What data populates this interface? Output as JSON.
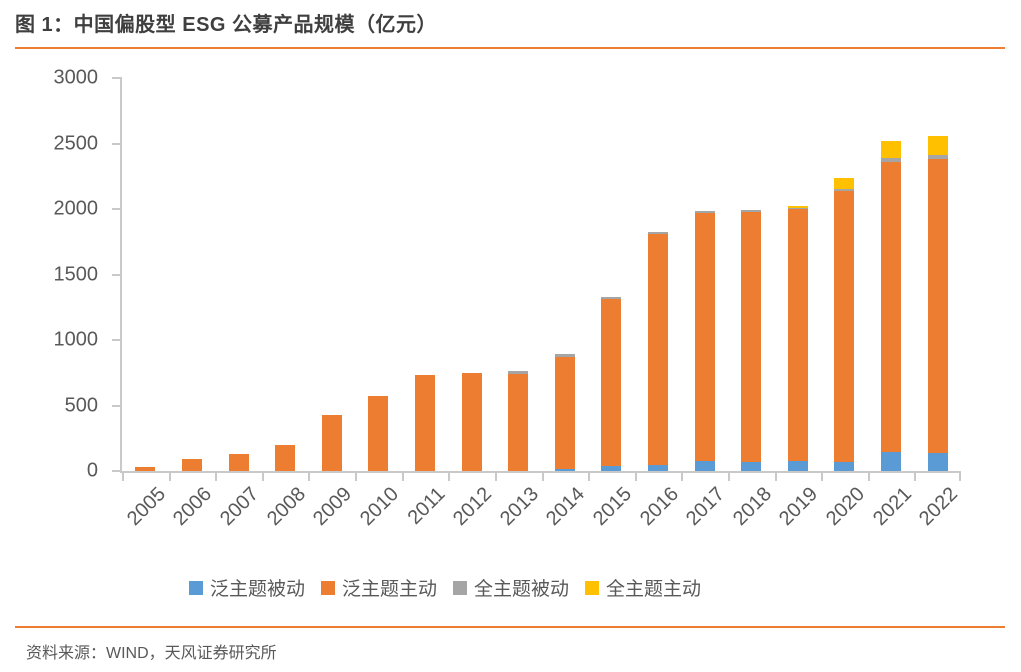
{
  "title": "图 1：中国偏股型 ESG 公募产品规模（亿元）",
  "source": "资料来源：WIND，天风证券研究所",
  "colors": {
    "accent_rule": "#ED7D31",
    "axis_line": "#C9C9C9",
    "label_text": "#595959",
    "title_text": "#3F3F3F"
  },
  "chart_data": {
    "type": "bar",
    "stacked": true,
    "title": "图 1：中国偏股型 ESG 公募产品规模（亿元）",
    "xlabel": "",
    "ylabel": "",
    "ylim": [
      0,
      3000
    ],
    "yticks": [
      0,
      500,
      1000,
      1500,
      2000,
      2500,
      3000
    ],
    "grid": false,
    "legend_position": "bottom",
    "categories": [
      "2005",
      "2006",
      "2007",
      "2008",
      "2009",
      "2010",
      "2011",
      "2012",
      "2013",
      "2014",
      "2015",
      "2016",
      "2017",
      "2018",
      "2019",
      "2020",
      "2021",
      "2022"
    ],
    "series": [
      {
        "name": "泛主题被动",
        "color": "#5B9BD5",
        "values": [
          0,
          0,
          0,
          0,
          0,
          0,
          0,
          0,
          0,
          18,
          36,
          46,
          77,
          72,
          77,
          69,
          143,
          140
        ]
      },
      {
        "name": "泛主题主动",
        "color": "#ED7D31",
        "values": [
          28,
          92,
          130,
          197,
          425,
          575,
          730,
          750,
          740,
          850,
          1280,
          1765,
          1895,
          1905,
          1920,
          2067,
          2220,
          2240
        ]
      },
      {
        "name": "全主题被动",
        "color": "#A5A5A5",
        "values": [
          0,
          0,
          0,
          0,
          0,
          0,
          0,
          0,
          25,
          25,
          12,
          14,
          13,
          13,
          8,
          15,
          25,
          35
        ]
      },
      {
        "name": "全主题主动",
        "color": "#FFC000",
        "values": [
          0,
          0,
          0,
          0,
          0,
          0,
          0,
          0,
          0,
          0,
          0,
          0,
          0,
          0,
          20,
          84,
          135,
          145
        ]
      }
    ]
  }
}
